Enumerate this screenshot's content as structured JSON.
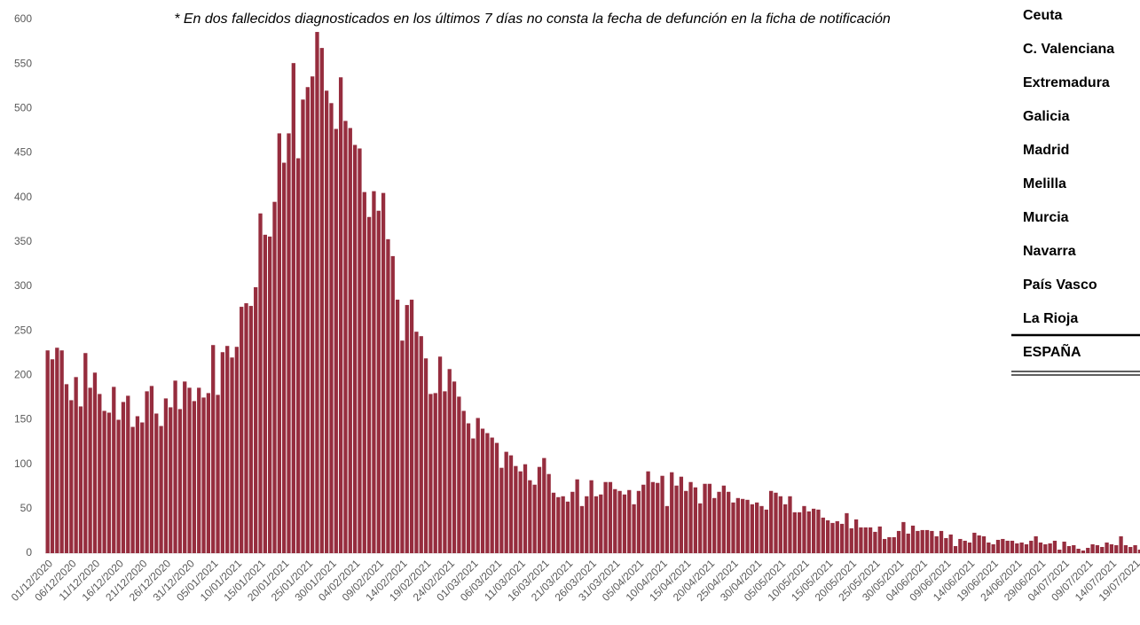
{
  "chart_data": {
    "type": "bar",
    "subtitle": "* En dos fallecidos diagnosticados en los últimos 7 días no consta la fecha de defunción en la ficha de notificación",
    "categories": [
      "01/12/2020",
      null,
      null,
      null,
      null,
      "06/12/2020",
      null,
      null,
      null,
      null,
      "11/12/2020",
      null,
      null,
      null,
      null,
      "16/12/2020",
      null,
      null,
      null,
      null,
      "21/12/2020",
      null,
      null,
      null,
      null,
      "26/12/2020",
      null,
      null,
      null,
      null,
      "31/12/2020",
      null,
      null,
      null,
      null,
      "05/01/2021",
      null,
      null,
      null,
      null,
      "10/01/2021",
      null,
      null,
      null,
      null,
      "15/01/2021",
      null,
      null,
      null,
      null,
      "20/01/2021",
      null,
      null,
      null,
      null,
      "25/01/2021",
      null,
      null,
      null,
      null,
      "30/01/2021",
      null,
      null,
      null,
      null,
      "04/02/2021",
      null,
      null,
      null,
      null,
      "09/02/2021",
      null,
      null,
      null,
      null,
      "14/02/2021",
      null,
      null,
      null,
      null,
      "19/02/2021",
      null,
      null,
      null,
      null,
      "24/02/2021",
      null,
      null,
      null,
      null,
      "01/03/2021",
      null,
      null,
      null,
      null,
      "06/03/2021",
      null,
      null,
      null,
      null,
      "11/03/2021",
      null,
      null,
      null,
      null,
      "16/03/2021",
      null,
      null,
      null,
      null,
      "21/03/2021",
      null,
      null,
      null,
      null,
      "26/03/2021",
      null,
      null,
      null,
      null,
      "31/03/2021",
      null,
      null,
      null,
      null,
      "05/04/2021",
      null,
      null,
      null,
      null,
      "10/04/2021",
      null,
      null,
      null,
      null,
      "15/04/2021",
      null,
      null,
      null,
      null,
      "20/04/2021",
      null,
      null,
      null,
      null,
      "25/04/2021",
      null,
      null,
      null,
      null,
      "30/04/2021",
      null,
      null,
      null,
      null,
      "05/05/2021",
      null,
      null,
      null,
      null,
      "10/05/2021",
      null,
      null,
      null,
      null,
      "15/05/2021",
      null,
      null,
      null,
      null,
      "20/05/2021",
      null,
      null,
      null,
      null,
      "25/05/2021",
      null,
      null,
      null,
      null,
      "30/05/2021",
      null,
      null,
      null,
      null,
      "04/06/2021",
      null,
      null,
      null,
      null,
      "09/06/2021",
      null,
      null,
      null,
      null,
      "14/06/2021",
      null,
      null,
      null,
      null,
      "19/06/2021",
      null,
      null,
      null,
      null,
      "24/06/2021",
      null,
      null,
      null,
      null,
      "29/06/2021",
      null,
      null,
      null,
      null,
      "04/07/2021",
      null,
      null,
      null,
      null,
      "09/07/2021",
      null,
      null,
      null,
      null,
      "14/07/2021",
      null,
      null,
      null,
      null,
      "19/07/2021",
      null,
      null
    ],
    "values": [
      228,
      218,
      231,
      228,
      190,
      172,
      198,
      165,
      225,
      186,
      203,
      179,
      160,
      158,
      187,
      150,
      170,
      177,
      142,
      154,
      147,
      182,
      188,
      157,
      143,
      174,
      164,
      194,
      162,
      193,
      186,
      171,
      186,
      175,
      180,
      234,
      178,
      226,
      233,
      220,
      232,
      277,
      281,
      278,
      299,
      382,
      358,
      356,
      395,
      472,
      439,
      472,
      551,
      444,
      510,
      524,
      536,
      586,
      568,
      520,
      506,
      477,
      535,
      486,
      478,
      459,
      455,
      406,
      378,
      407,
      385,
      405,
      353,
      334,
      285,
      239,
      279,
      285,
      249,
      244,
      219,
      179,
      180,
      221,
      182,
      207,
      193,
      176,
      160,
      146,
      129,
      152,
      140,
      135,
      130,
      124,
      96,
      114,
      110,
      98,
      92,
      100,
      82,
      77,
      97,
      107,
      89,
      68,
      63,
      64,
      58,
      69,
      83,
      53,
      64,
      82,
      64,
      66,
      80,
      80,
      72,
      70,
      66,
      71,
      55,
      70,
      77,
      92,
      80,
      79,
      87,
      53,
      91,
      76,
      86,
      70,
      80,
      74,
      56,
      78,
      78,
      62,
      69,
      76,
      69,
      57,
      62,
      61,
      60,
      55,
      57,
      53,
      49,
      70,
      68,
      64,
      55,
      64,
      46,
      46,
      53,
      47,
      50,
      49,
      40,
      37,
      34,
      36,
      33,
      45,
      28,
      38,
      29,
      29,
      29,
      24,
      30,
      16,
      18,
      18,
      25,
      35,
      22,
      31,
      25,
      26,
      26,
      25,
      19,
      25,
      17,
      21,
      8,
      16,
      14,
      12,
      23,
      20,
      19,
      12,
      10,
      15,
      16,
      14,
      14,
      11,
      12,
      10,
      14,
      19,
      12,
      10,
      11,
      14,
      4,
      13,
      8,
      9,
      5,
      3,
      6,
      10,
      9,
      7,
      12,
      10,
      9,
      19,
      9,
      7,
      9,
      4,
      9
    ],
    "color": "#962d3e",
    "ylim": [
      0,
      600
    ],
    "yticks": [
      0,
      50,
      100,
      150,
      200,
      250,
      300,
      350,
      400,
      450,
      500,
      550,
      600
    ]
  },
  "table": {
    "rows": [
      "Ceuta",
      "C. Valenciana",
      "Extremadura",
      "Galicia",
      "Madrid",
      "Melilla",
      "Murcia",
      "Navarra",
      "País Vasco",
      "La Rioja",
      "ESPAÑA"
    ]
  }
}
